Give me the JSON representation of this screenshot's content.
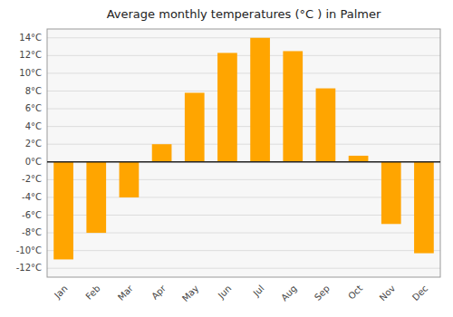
{
  "chart_data": {
    "type": "bar",
    "title": "Average monthly temperatures (°C ) in Palmer",
    "categories": [
      "Jan",
      "Feb",
      "Mar",
      "Apr",
      "May",
      "Jun",
      "Jul",
      "Aug",
      "Sep",
      "Oct",
      "Nov",
      "Dec"
    ],
    "values": [
      -11,
      -8,
      -4,
      2,
      7.8,
      12.3,
      14,
      12.5,
      8.3,
      0.7,
      -7,
      -10.3
    ],
    "color": "#FFA500",
    "ylim": [
      -13,
      15
    ],
    "yticks": [
      {
        "value": -12,
        "label": "-12°C"
      },
      {
        "value": -10,
        "label": "-10°C"
      },
      {
        "value": -8,
        "label": "-8°C"
      },
      {
        "value": -6,
        "label": "-6°C"
      },
      {
        "value": -4,
        "label": "-4°C"
      },
      {
        "value": -2,
        "label": "-2°C"
      },
      {
        "value": 0,
        "label": "0°C"
      },
      {
        "value": 2,
        "label": "2°C"
      },
      {
        "value": 4,
        "label": "4°C"
      },
      {
        "value": 6,
        "label": "6°C"
      },
      {
        "value": 8,
        "label": "8°C"
      },
      {
        "value": 10,
        "label": "10°C"
      },
      {
        "value": 12,
        "label": "12°C"
      },
      {
        "value": 14,
        "label": "14°C"
      }
    ],
    "grid": true
  }
}
